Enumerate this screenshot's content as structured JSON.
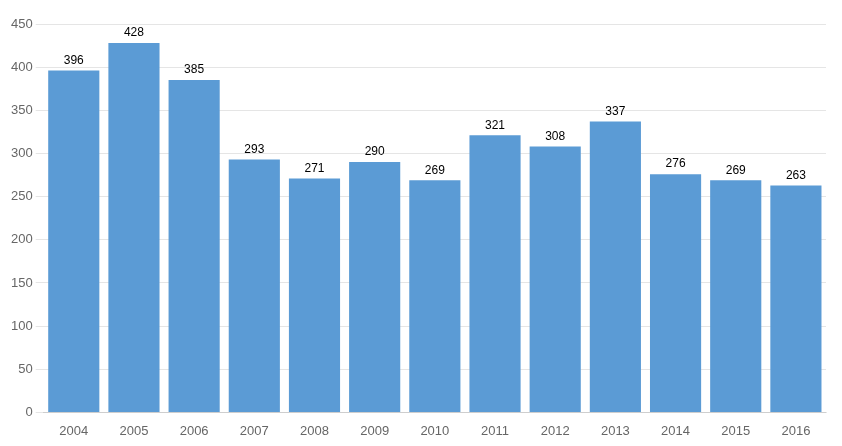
{
  "chart_data": {
    "type": "bar",
    "categories": [
      2004,
      2005,
      2006,
      2007,
      2008,
      2009,
      2010,
      2011,
      2012,
      2013,
      2014,
      2015,
      2016
    ],
    "values": [
      396,
      428,
      385,
      293,
      271,
      290,
      269,
      321,
      308,
      337,
      276,
      269,
      263
    ],
    "color": "#5B9BD5",
    "ylim": [
      0,
      450
    ],
    "yticks": [
      0,
      50,
      100,
      150,
      200,
      250,
      300,
      350,
      400,
      450
    ],
    "grid": true,
    "data_labels": true
  }
}
